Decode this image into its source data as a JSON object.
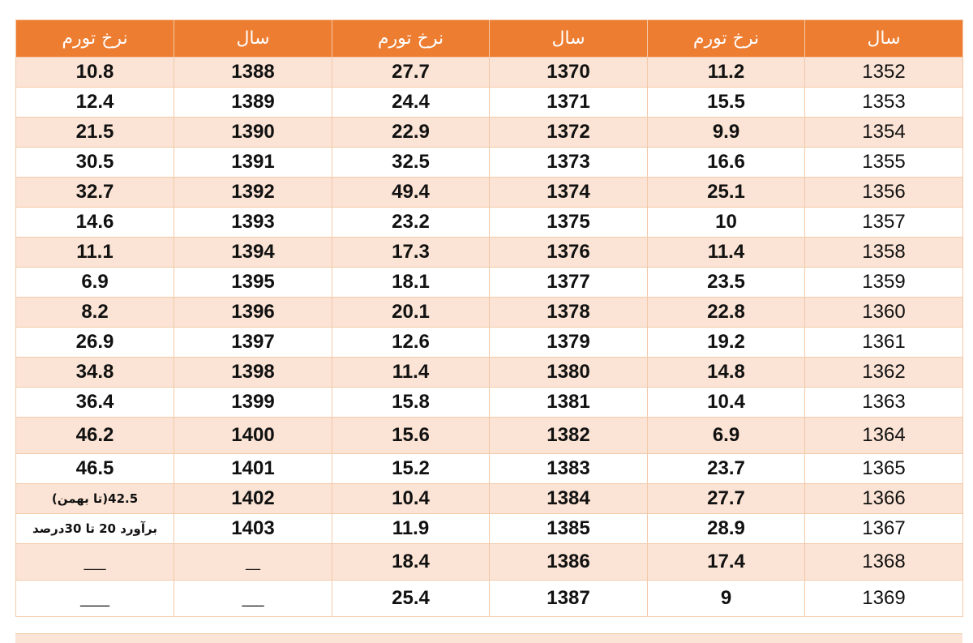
{
  "headers": [
    "نرخ تورم",
    "سال",
    "نرخ تورم",
    "سال",
    "نرخ تورم",
    "سال"
  ],
  "rows": [
    [
      "10.8",
      "1388",
      "27.7",
      "1370",
      "11.2",
      "1352"
    ],
    [
      "12.4",
      "1389",
      "24.4",
      "1371",
      "15.5",
      "1353"
    ],
    [
      "21.5",
      "1390",
      "22.9",
      "1372",
      "9.9",
      "1354"
    ],
    [
      "30.5",
      "1391",
      "32.5",
      "1373",
      "16.6",
      "1355"
    ],
    [
      "32.7",
      "1392",
      "49.4",
      "1374",
      "25.1",
      "1356"
    ],
    [
      "14.6",
      "1393",
      "23.2",
      "1375",
      "10",
      "1357"
    ],
    [
      "11.1",
      "1394",
      "17.3",
      "1376",
      "11.4",
      "1358"
    ],
    [
      "6.9",
      "1395",
      "18.1",
      "1377",
      "23.5",
      "1359"
    ],
    [
      "8.2",
      "1396",
      "20.1",
      "1378",
      "22.8",
      "1360"
    ],
    [
      "26.9",
      "1397",
      "12.6",
      "1379",
      "19.2",
      "1361"
    ],
    [
      "34.8",
      "1398",
      "11.4",
      "1380",
      "14.8",
      "1362"
    ],
    [
      "36.4",
      "1399",
      "15.8",
      "1381",
      "10.4",
      "1363"
    ],
    [
      "46.2",
      "1400",
      "15.6",
      "1382",
      "6.9",
      "1364"
    ],
    [
      "46.5",
      "1401",
      "15.2",
      "1383",
      "23.7",
      "1365"
    ],
    [
      "42.5(تا بهمن)",
      "1402",
      "10.4",
      "1384",
      "27.7",
      "1366"
    ],
    [
      "برآورد 20 تا 30درصد",
      "1403",
      "11.9",
      "1385",
      "28.9",
      "1367"
    ],
    [
      "___",
      "__",
      "18.4",
      "1386",
      "17.4",
      "1368"
    ],
    [
      "____",
      "___",
      "25.4",
      "1387",
      "9",
      "1369"
    ]
  ],
  "colors": {
    "header_bg": "#ed7d31",
    "band_bg": "#fbe4d5",
    "grid": "#f4c9a8"
  }
}
